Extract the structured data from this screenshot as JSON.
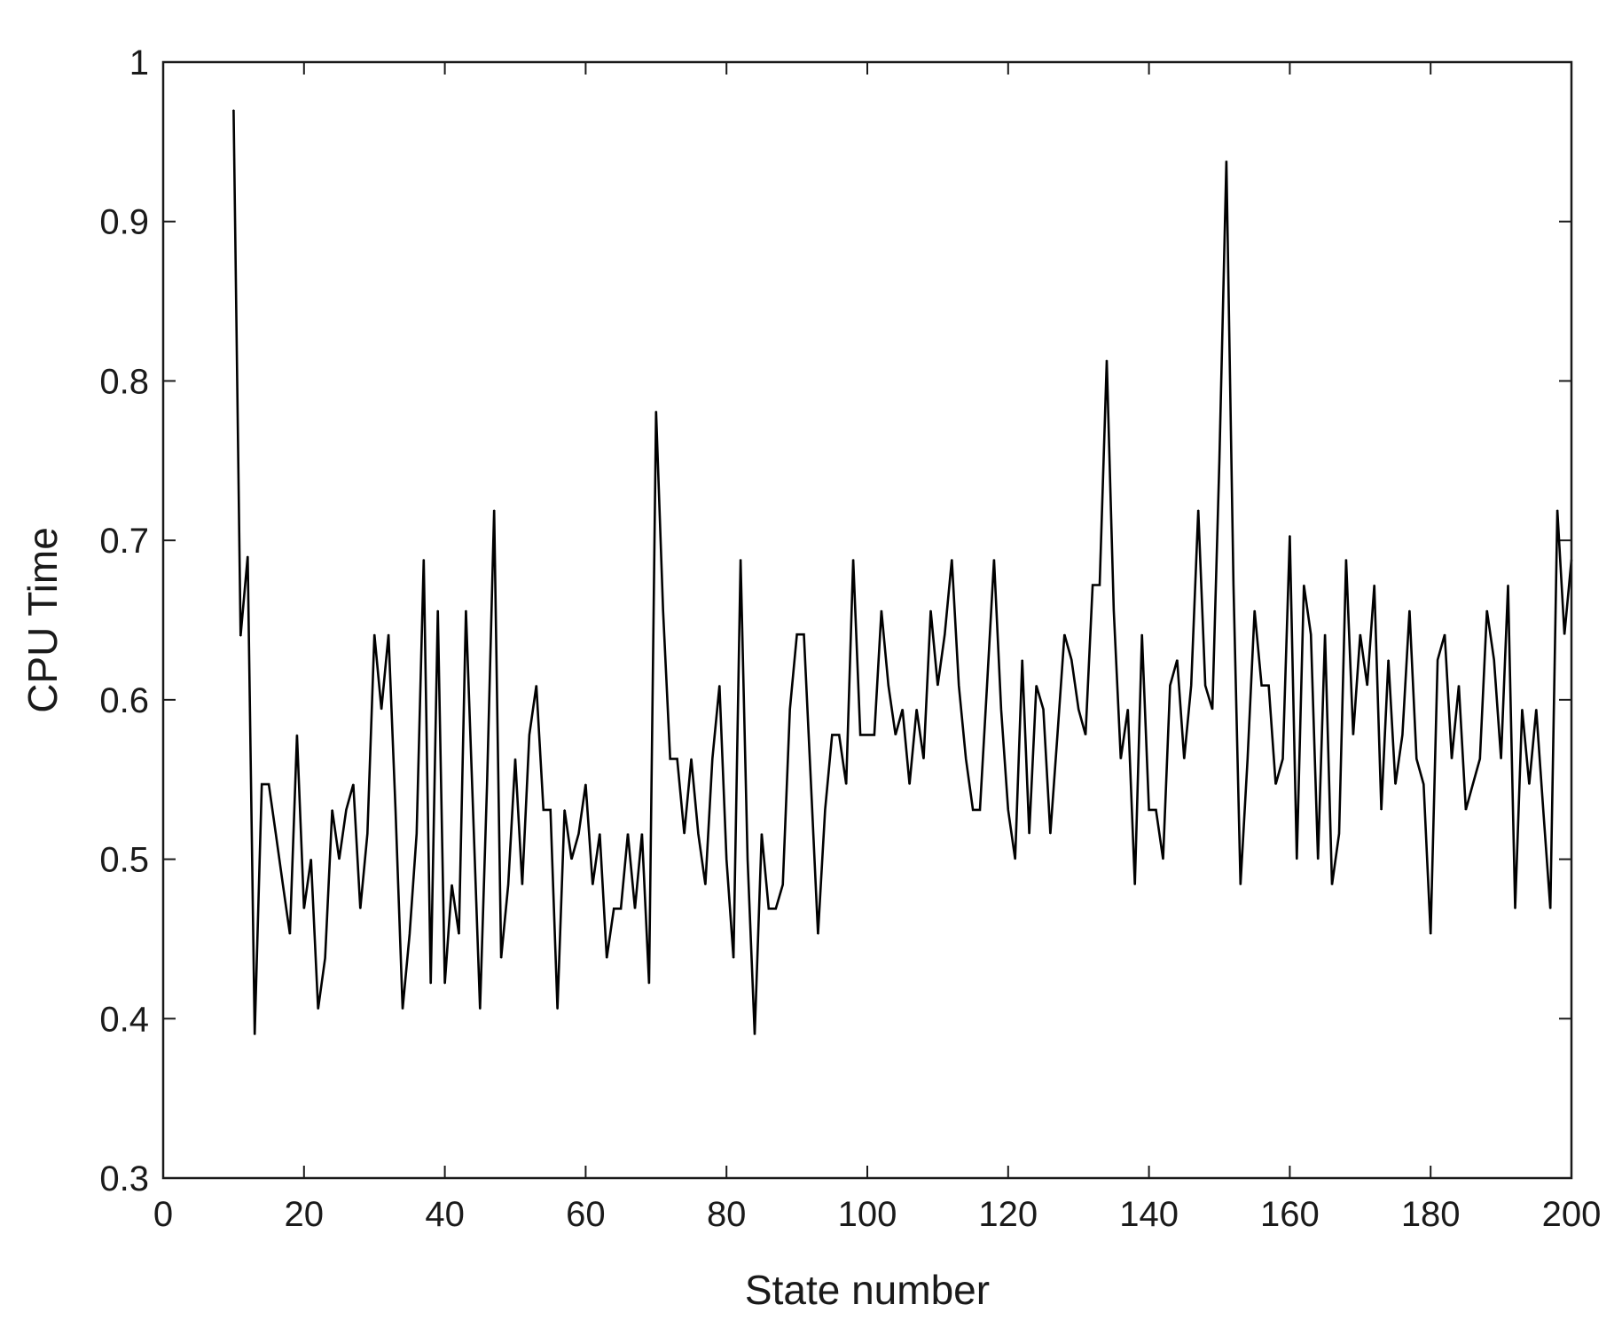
{
  "chart_data": {
    "type": "line",
    "title": "",
    "xlabel": "State number",
    "ylabel": "CPU Time",
    "xlim": [
      0,
      200
    ],
    "ylim": [
      0.3,
      1.0
    ],
    "x_ticks": [
      "0",
      "20",
      "40",
      "60",
      "80",
      "100",
      "120",
      "140",
      "160",
      "180",
      "200"
    ],
    "y_ticks": [
      "0.3",
      "0.4",
      "0.5",
      "0.6",
      "0.7",
      "0.8",
      "0.9",
      "1"
    ],
    "grid": false,
    "legend": "none",
    "line_color": "#000000",
    "series": [
      {
        "x_start": 10,
        "x_step": 1,
        "values": [
          0.97,
          0.64,
          0.69,
          0.39,
          0.547,
          0.547,
          0.516,
          0.484,
          0.453,
          0.578,
          0.469,
          0.5,
          0.406,
          0.438,
          0.531,
          0.5,
          0.531,
          0.547,
          0.469,
          0.516,
          0.641,
          0.594,
          0.641,
          0.531,
          0.406,
          0.453,
          0.516,
          0.688,
          0.422,
          0.656,
          0.422,
          0.484,
          0.453,
          0.656,
          0.531,
          0.406,
          0.547,
          0.719,
          0.438,
          0.484,
          0.563,
          0.484,
          0.578,
          0.609,
          0.531,
          0.531,
          0.406,
          0.531,
          0.5,
          0.516,
          0.547,
          0.484,
          0.516,
          0.438,
          0.469,
          0.469,
          0.516,
          0.469,
          0.516,
          0.422,
          0.781,
          0.656,
          0.563,
          0.563,
          0.516,
          0.563,
          0.516,
          0.484,
          0.563,
          0.609,
          0.5,
          0.438,
          0.688,
          0.5,
          0.39,
          0.516,
          0.469,
          0.469,
          0.484,
          0.594,
          0.641,
          0.641,
          0.547,
          0.453,
          0.531,
          0.578,
          0.578,
          0.547,
          0.688,
          0.578,
          0.578,
          0.578,
          0.656,
          0.609,
          0.578,
          0.594,
          0.547,
          0.594,
          0.563,
          0.656,
          0.609,
          0.641,
          0.688,
          0.609,
          0.563,
          0.531,
          0.531,
          0.609,
          0.688,
          0.594,
          0.531,
          0.5,
          0.625,
          0.516,
          0.609,
          0.594,
          0.516,
          0.578,
          0.641,
          0.625,
          0.594,
          0.578,
          0.672,
          0.672,
          0.813,
          0.656,
          0.563,
          0.594,
          0.484,
          0.641,
          0.531,
          0.531,
          0.5,
          0.609,
          0.625,
          0.563,
          0.609,
          0.719,
          0.609,
          0.594,
          0.75,
          0.938,
          0.672,
          0.484,
          0.563,
          0.656,
          0.609,
          0.609,
          0.547,
          0.563,
          0.703,
          0.5,
          0.672,
          0.641,
          0.5,
          0.641,
          0.484,
          0.516,
          0.688,
          0.578,
          0.641,
          0.609,
          0.672,
          0.531,
          0.625,
          0.547,
          0.578,
          0.656,
          0.563,
          0.547,
          0.453,
          0.625,
          0.641,
          0.563,
          0.609,
          0.531,
          0.547,
          0.563,
          0.656,
          0.625,
          0.563,
          0.672,
          0.469,
          0.594,
          0.547,
          0.594,
          0.531,
          0.469,
          0.719,
          0.641,
          0.688
        ]
      }
    ]
  }
}
